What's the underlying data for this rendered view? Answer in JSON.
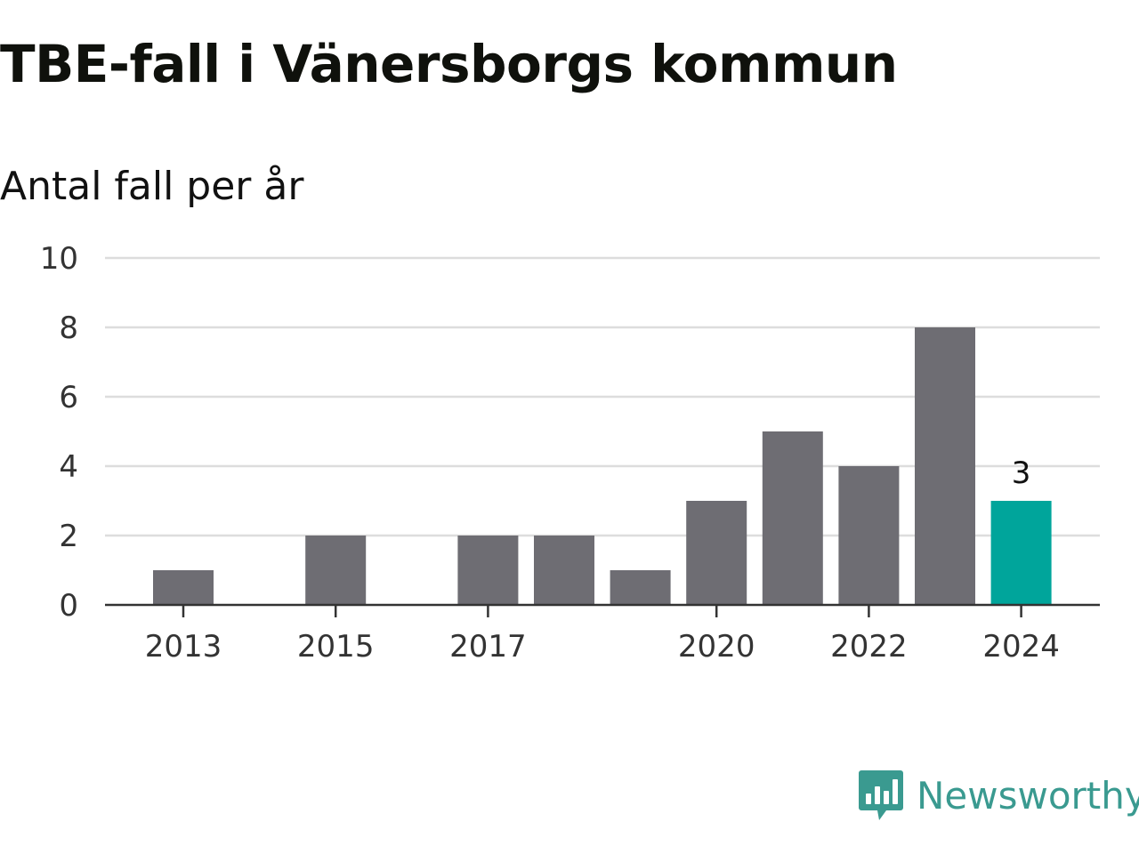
{
  "chart_data": {
    "type": "bar",
    "title": "TBE-fall i Vänersborgs kommun",
    "subtitle": "Antal fall per år",
    "categories": [
      "2013",
      "2014",
      "2015",
      "2016",
      "2017",
      "2018",
      "2019",
      "2020",
      "2021",
      "2022",
      "2023",
      "2024"
    ],
    "x_tick_labels": [
      "2013",
      "2015",
      "2017",
      "2020",
      "2022",
      "2024"
    ],
    "values": [
      1,
      0,
      2,
      0,
      2,
      2,
      1,
      3,
      5,
      4,
      8,
      3
    ],
    "highlight_category": "2024",
    "highlight_label": "3",
    "ylim": [
      0,
      10
    ],
    "y_ticks": [
      0,
      2,
      4,
      6,
      8,
      10
    ],
    "grid": true,
    "colors": {
      "bar": "#6e6d73",
      "highlight": "#00a59b",
      "grid": "#dddddd",
      "axis": "#333333"
    }
  },
  "branding": {
    "name": "Newsworthy",
    "icon": "newsworthy-logo-icon",
    "color": "#3a9a90"
  }
}
